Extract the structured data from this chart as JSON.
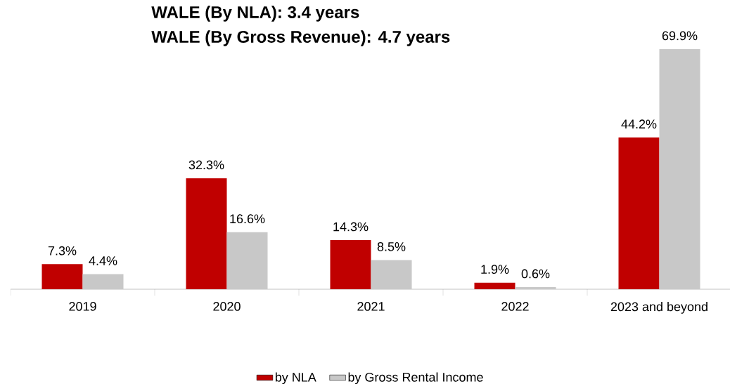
{
  "chart_data": {
    "type": "bar",
    "title": "WALE (By NLA): 3.4 years",
    "subtitle": "WALE (By Gross Revenue): 4.7 years",
    "categories": [
      "2019",
      "2020",
      "2021",
      "2022",
      "2023 and beyond"
    ],
    "series": [
      {
        "name": "by NLA",
        "color": "#c00000",
        "values": [
          7.3,
          32.3,
          14.3,
          1.9,
          44.2
        ],
        "value_labels": [
          "7.3%",
          "32.3%",
          "14.3%",
          "1.9%",
          "44.2%"
        ]
      },
      {
        "name": "by Gross Rental Income",
        "color": "#c8c8c8",
        "values": [
          4.4,
          16.6,
          8.5,
          0.6,
          69.9
        ],
        "value_labels": [
          "4.4%",
          "16.6%",
          "8.5%",
          "0.6%",
          "69.9%"
        ]
      }
    ],
    "legend": "bottom"
  }
}
